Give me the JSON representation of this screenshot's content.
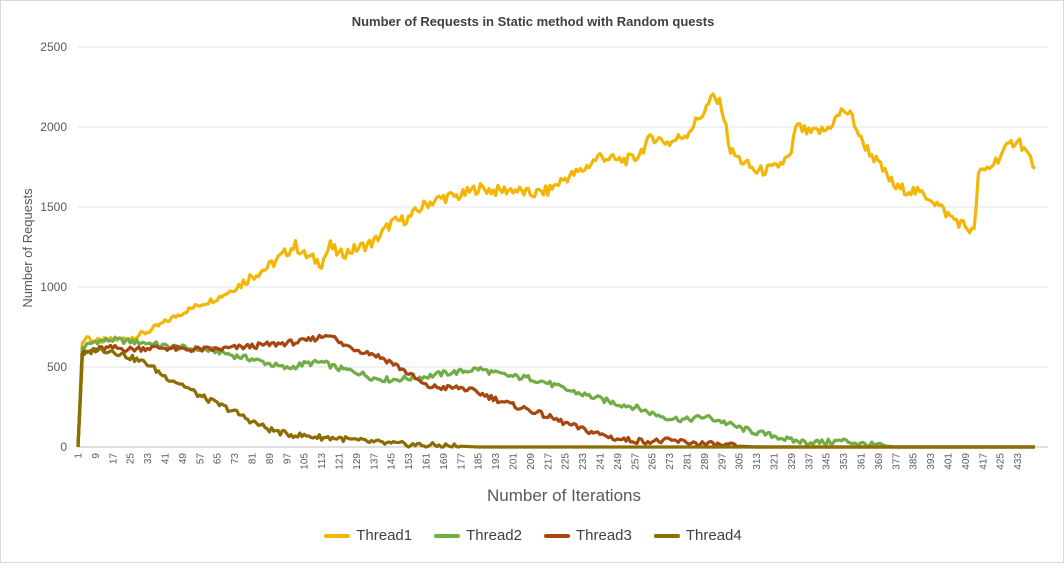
{
  "chart_data": {
    "type": "line",
    "title": "Number of Requests in Static method with Random quests",
    "xlabel": "Number of Iterations",
    "ylabel": "Number of Requests",
    "ylim": [
      0,
      2500
    ],
    "yticks": [
      0,
      500,
      1000,
      1500,
      2000,
      2500
    ],
    "xlim": [
      1,
      447
    ],
    "xticks_start": 1,
    "xticks_step": 8,
    "xticks_end": 433,
    "grid": "horizontal",
    "legend_position": "bottom",
    "series": [
      {
        "name": "Thread1",
        "color": "#f2b705",
        "points": [
          [
            1,
            0
          ],
          [
            3,
            650
          ],
          [
            5,
            690
          ],
          [
            9,
            660
          ],
          [
            17,
            670
          ],
          [
            25,
            680
          ],
          [
            33,
            720
          ],
          [
            41,
            780
          ],
          [
            49,
            840
          ],
          [
            57,
            890
          ],
          [
            65,
            930
          ],
          [
            73,
            990
          ],
          [
            81,
            1070
          ],
          [
            89,
            1130
          ],
          [
            97,
            1220
          ],
          [
            101,
            1260
          ],
          [
            105,
            1200
          ],
          [
            113,
            1150
          ],
          [
            117,
            1260
          ],
          [
            121,
            1200
          ],
          [
            129,
            1240
          ],
          [
            137,
            1280
          ],
          [
            145,
            1400
          ],
          [
            153,
            1430
          ],
          [
            161,
            1520
          ],
          [
            169,
            1560
          ],
          [
            177,
            1570
          ],
          [
            185,
            1620
          ],
          [
            193,
            1600
          ],
          [
            201,
            1610
          ],
          [
            209,
            1580
          ],
          [
            217,
            1600
          ],
          [
            225,
            1680
          ],
          [
            233,
            1730
          ],
          [
            241,
            1820
          ],
          [
            249,
            1790
          ],
          [
            257,
            1800
          ],
          [
            265,
            1940
          ],
          [
            273,
            1900
          ],
          [
            281,
            1960
          ],
          [
            289,
            2100
          ],
          [
            293,
            2190
          ],
          [
            297,
            2130
          ],
          [
            301,
            1850
          ],
          [
            305,
            1800
          ],
          [
            313,
            1720
          ],
          [
            321,
            1740
          ],
          [
            329,
            1820
          ],
          [
            331,
            2010
          ],
          [
            337,
            1960
          ],
          [
            345,
            1980
          ],
          [
            353,
            2110
          ],
          [
            357,
            2060
          ],
          [
            361,
            1920
          ],
          [
            369,
            1770
          ],
          [
            377,
            1620
          ],
          [
            385,
            1600
          ],
          [
            393,
            1560
          ],
          [
            401,
            1450
          ],
          [
            409,
            1380
          ],
          [
            413,
            1340
          ],
          [
            415,
            1700
          ],
          [
            421,
            1760
          ],
          [
            429,
            1880
          ],
          [
            433,
            1930
          ],
          [
            439,
            1800
          ],
          [
            441,
            1740
          ]
        ]
      },
      {
        "name": "Thread2",
        "color": "#70ad47",
        "points": [
          [
            1,
            0
          ],
          [
            3,
            620
          ],
          [
            9,
            660
          ],
          [
            17,
            670
          ],
          [
            25,
            660
          ],
          [
            33,
            650
          ],
          [
            41,
            630
          ],
          [
            49,
            620
          ],
          [
            57,
            610
          ],
          [
            65,
            600
          ],
          [
            73,
            570
          ],
          [
            81,
            550
          ],
          [
            89,
            520
          ],
          [
            97,
            490
          ],
          [
            105,
            520
          ],
          [
            113,
            530
          ],
          [
            121,
            490
          ],
          [
            129,
            470
          ],
          [
            137,
            430
          ],
          [
            145,
            420
          ],
          [
            153,
            430
          ],
          [
            161,
            440
          ],
          [
            169,
            460
          ],
          [
            177,
            470
          ],
          [
            185,
            490
          ],
          [
            193,
            460
          ],
          [
            201,
            440
          ],
          [
            209,
            430
          ],
          [
            217,
            400
          ],
          [
            225,
            360
          ],
          [
            233,
            330
          ],
          [
            241,
            300
          ],
          [
            249,
            270
          ],
          [
            257,
            250
          ],
          [
            265,
            210
          ],
          [
            273,
            180
          ],
          [
            281,
            170
          ],
          [
            289,
            190
          ],
          [
            297,
            160
          ],
          [
            305,
            120
          ],
          [
            313,
            90
          ],
          [
            321,
            70
          ],
          [
            329,
            40
          ],
          [
            337,
            30
          ],
          [
            345,
            30
          ],
          [
            353,
            40
          ],
          [
            361,
            20
          ],
          [
            369,
            10
          ],
          [
            377,
            0
          ],
          [
            441,
            0
          ]
        ]
      },
      {
        "name": "Thread3",
        "color": "#a5470f",
        "points": [
          [
            1,
            0
          ],
          [
            3,
            580
          ],
          [
            9,
            610
          ],
          [
            17,
            620
          ],
          [
            25,
            610
          ],
          [
            33,
            620
          ],
          [
            41,
            620
          ],
          [
            49,
            610
          ],
          [
            57,
            610
          ],
          [
            65,
            610
          ],
          [
            73,
            620
          ],
          [
            81,
            630
          ],
          [
            89,
            640
          ],
          [
            97,
            650
          ],
          [
            105,
            660
          ],
          [
            113,
            690
          ],
          [
            117,
            710
          ],
          [
            121,
            650
          ],
          [
            129,
            610
          ],
          [
            137,
            580
          ],
          [
            145,
            530
          ],
          [
            153,
            460
          ],
          [
            161,
            380
          ],
          [
            169,
            370
          ],
          [
            177,
            370
          ],
          [
            185,
            340
          ],
          [
            193,
            300
          ],
          [
            201,
            260
          ],
          [
            209,
            230
          ],
          [
            217,
            190
          ],
          [
            225,
            150
          ],
          [
            233,
            110
          ],
          [
            241,
            80
          ],
          [
            249,
            50
          ],
          [
            257,
            40
          ],
          [
            265,
            35
          ],
          [
            273,
            40
          ],
          [
            281,
            30
          ],
          [
            289,
            20
          ],
          [
            297,
            10
          ],
          [
            305,
            5
          ],
          [
            313,
            0
          ],
          [
            441,
            0
          ]
        ]
      },
      {
        "name": "Thread4",
        "color": "#8c6d00",
        "points": [
          [
            1,
            0
          ],
          [
            3,
            570
          ],
          [
            9,
            610
          ],
          [
            17,
            600
          ],
          [
            25,
            560
          ],
          [
            33,
            520
          ],
          [
            41,
            440
          ],
          [
            49,
            390
          ],
          [
            57,
            320
          ],
          [
            65,
            270
          ],
          [
            73,
            220
          ],
          [
            81,
            160
          ],
          [
            89,
            110
          ],
          [
            97,
            80
          ],
          [
            105,
            70
          ],
          [
            113,
            60
          ],
          [
            121,
            55
          ],
          [
            129,
            40
          ],
          [
            137,
            30
          ],
          [
            145,
            20
          ],
          [
            153,
            15
          ],
          [
            161,
            10
          ],
          [
            169,
            8
          ],
          [
            177,
            5
          ],
          [
            185,
            0
          ],
          [
            441,
            0
          ]
        ]
      }
    ]
  }
}
